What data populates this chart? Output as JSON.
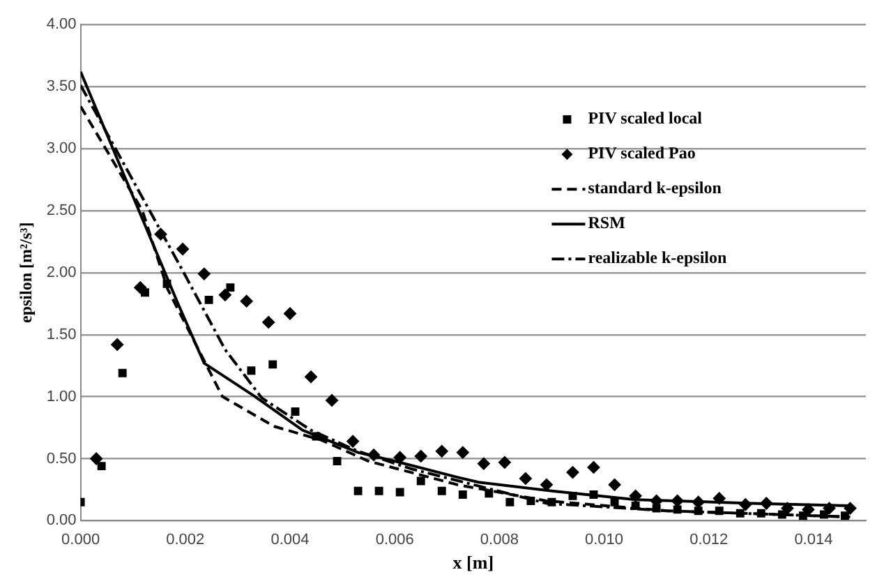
{
  "chart_data": {
    "type": "scatter",
    "xlabel": "x [m]",
    "ylabel": "epsilon [m²/s³]",
    "xlim": [
      0,
      0.015
    ],
    "xticks": [
      {
        "value": 0,
        "label": "0.000"
      },
      {
        "value": 0.002,
        "label": "0.002"
      },
      {
        "value": 0.004,
        "label": "0.004"
      },
      {
        "value": 0.006,
        "label": "0.006"
      },
      {
        "value": 0.008,
        "label": "0.008"
      },
      {
        "value": 0.01,
        "label": "0.010"
      },
      {
        "value": 0.012,
        "label": "0.012"
      },
      {
        "value": 0.014,
        "label": "0.014"
      }
    ],
    "ylim": [
      0,
      4
    ],
    "yticks": [
      {
        "value": 0,
        "label": "0.00"
      },
      {
        "value": 0.5,
        "label": "0.50"
      },
      {
        "value": 1,
        "label": "1.00"
      },
      {
        "value": 1.5,
        "label": "1.50"
      },
      {
        "value": 2,
        "label": "2.00"
      },
      {
        "value": 2.5,
        "label": "2.50"
      },
      {
        "value": 3,
        "label": "3.00"
      },
      {
        "value": 3.5,
        "label": "3.50"
      },
      {
        "value": 4,
        "label": "4.00"
      }
    ],
    "grid": "y",
    "legend": "top right",
    "series": [
      {
        "name": "PIV scaled local",
        "type": "scatter",
        "marker": "square",
        "color": "#000000",
        "x": [
          0,
          0.0004,
          0.0008,
          0.00123,
          0.00165,
          0.00245,
          0.00286,
          0.00326,
          0.00367,
          0.0041,
          0.0045,
          0.0049,
          0.0053,
          0.0057,
          0.0061,
          0.0065,
          0.0069,
          0.0073,
          0.0078,
          0.0082,
          0.0086,
          0.009,
          0.0094,
          0.0098,
          0.0102,
          0.0106,
          0.011,
          0.0114,
          0.0118,
          0.0122,
          0.0126,
          0.013,
          0.0134,
          0.0138,
          0.0142,
          0.0146
        ],
        "values": [
          0.15,
          0.44,
          1.19,
          1.84,
          1.91,
          1.78,
          1.88,
          1.21,
          1.26,
          0.88,
          0.68,
          0.48,
          0.24,
          0.24,
          0.23,
          0.32,
          0.24,
          0.21,
          0.22,
          0.15,
          0.16,
          0.15,
          0.2,
          0.21,
          0.15,
          0.12,
          0.1,
          0.09,
          0.08,
          0.08,
          0.06,
          0.06,
          0.05,
          0.04,
          0.05,
          0.04
        ]
      },
      {
        "name": "PIV scaled Pao",
        "type": "scatter",
        "marker": "diamond",
        "color": "#000000",
        "x": [
          0.0003,
          0.0007,
          0.00114,
          0.00153,
          0.00195,
          0.00236,
          0.00276,
          0.00317,
          0.00359,
          0.004,
          0.0044,
          0.0048,
          0.0052,
          0.0056,
          0.0061,
          0.0065,
          0.0069,
          0.0073,
          0.0077,
          0.0081,
          0.0085,
          0.0089,
          0.0094,
          0.0098,
          0.0102,
          0.0106,
          0.011,
          0.0114,
          0.0118,
          0.0122,
          0.0127,
          0.0131,
          0.0135,
          0.0139,
          0.0143,
          0.0147
        ],
        "values": [
          0.5,
          1.42,
          1.88,
          2.31,
          2.19,
          1.99,
          1.82,
          1.77,
          1.6,
          1.67,
          1.16,
          0.97,
          0.64,
          0.53,
          0.51,
          0.52,
          0.56,
          0.55,
          0.46,
          0.47,
          0.34,
          0.29,
          0.39,
          0.43,
          0.29,
          0.2,
          0.16,
          0.16,
          0.15,
          0.18,
          0.13,
          0.14,
          0.1,
          0.09,
          0.1,
          0.1
        ]
      },
      {
        "name": "standard k-epsilon",
        "type": "line",
        "marker": "none",
        "line_style": "dashed",
        "color": "#000000",
        "x": [
          0,
          0.00118,
          0.00166,
          0.00271,
          0.0037,
          0.0046,
          0.0055,
          0.0072,
          0.0089,
          0.0112,
          0.0147
        ],
        "values": [
          3.34,
          2.5,
          1.87,
          1.0,
          0.76,
          0.65,
          0.48,
          0.29,
          0.16,
          0.08,
          0.03
        ]
      },
      {
        "name": "RSM",
        "type": "line",
        "marker": "none",
        "line_style": "solid",
        "color": "#000000",
        "x": [
          0,
          0.00186,
          0.00236,
          0.0033,
          0.00424,
          0.0053,
          0.006,
          0.0072,
          0.0076,
          0.009,
          0.0106,
          0.0128,
          0.0147
        ],
        "values": [
          3.62,
          1.75,
          1.27,
          1.01,
          0.73,
          0.55,
          0.48,
          0.35,
          0.31,
          0.24,
          0.17,
          0.14,
          0.12
        ]
      },
      {
        "name": "realizable k-epsilon",
        "type": "line",
        "marker": "none",
        "line_style": "dashdot",
        "color": "#000000",
        "x": [
          0,
          0.00197,
          0.00276,
          0.00346,
          0.0044,
          0.0053,
          0.0063,
          0.0089,
          0.0112,
          0.0147
        ],
        "values": [
          3.51,
          2.0,
          1.38,
          0.99,
          0.73,
          0.56,
          0.42,
          0.14,
          0.08,
          0.03
        ]
      }
    ]
  }
}
